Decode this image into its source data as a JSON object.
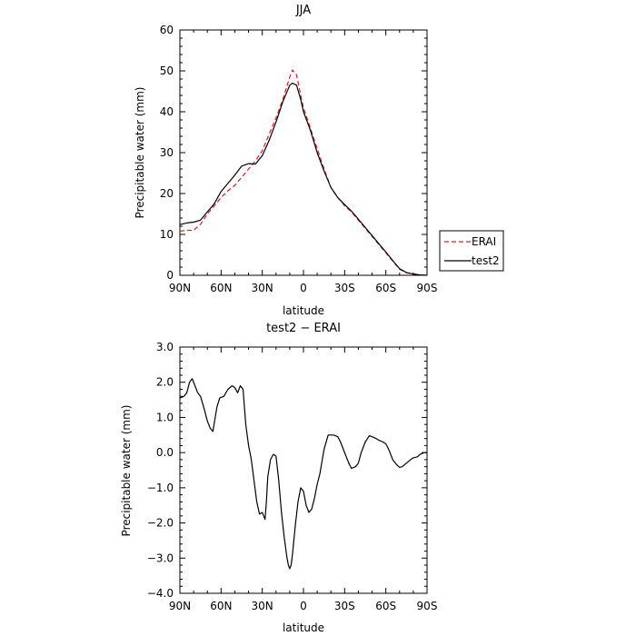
{
  "chart_data": [
    {
      "type": "line",
      "title": "JJA",
      "xlabel": "latitude",
      "ylabel": "Precipitable water (mm)",
      "xlim": [
        -90,
        90
      ],
      "ylim": [
        0,
        60
      ],
      "x_ticks": [
        -90,
        -60,
        -30,
        0,
        30,
        60,
        90
      ],
      "x_tick_labels": [
        "90N",
        "60N",
        "30N",
        "0",
        "30S",
        "60S",
        "90S"
      ],
      "y_ticks": [
        0,
        10,
        20,
        30,
        40,
        50,
        60
      ],
      "y_tick_labels": [
        "0",
        "10",
        "20",
        "30",
        "40",
        "50",
        "60"
      ],
      "legend_position": "right",
      "series": [
        {
          "name": "ERAI",
          "color": "#e41a1c",
          "dash": "dashed",
          "x": [
            -90,
            -85,
            -80,
            -75,
            -70,
            -65,
            -60,
            -55,
            -50,
            -45,
            -40,
            -35,
            -30,
            -25,
            -20,
            -15,
            -10,
            -8,
            -5,
            -2,
            0,
            5,
            10,
            15,
            20,
            25,
            30,
            35,
            40,
            45,
            50,
            55,
            60,
            65,
            70,
            75,
            80,
            85,
            90
          ],
          "y": [
            10.8,
            11.0,
            11.0,
            12.5,
            15.0,
            17.0,
            19.0,
            20.7,
            22.0,
            24.0,
            26.0,
            28.0,
            30.5,
            34.5,
            38.5,
            43.0,
            48.5,
            50.2,
            49.0,
            44.0,
            41.0,
            36.0,
            31.0,
            26.0,
            21.5,
            19.0,
            17.0,
            15.5,
            13.5,
            11.5,
            9.5,
            7.5,
            5.5,
            3.5,
            1.5,
            0.6,
            0.3,
            0.1,
            0.0
          ]
        },
        {
          "name": "test2",
          "color": "#000000",
          "dash": "solid",
          "x": [
            -90,
            -85,
            -80,
            -75,
            -70,
            -65,
            -60,
            -55,
            -50,
            -45,
            -40,
            -35,
            -30,
            -25,
            -20,
            -15,
            -10,
            -8,
            -5,
            -2,
            0,
            5,
            10,
            15,
            20,
            25,
            30,
            35,
            40,
            45,
            50,
            55,
            60,
            65,
            70,
            75,
            80,
            85,
            90
          ],
          "y": [
            12.4,
            12.8,
            13.0,
            13.5,
            15.5,
            17.5,
            20.5,
            22.5,
            24.5,
            26.7,
            27.3,
            27.2,
            29.3,
            33.0,
            37.5,
            42.5,
            46.5,
            47.0,
            46.5,
            43.0,
            40.0,
            35.5,
            30.0,
            25.5,
            21.5,
            19.0,
            17.3,
            15.7,
            13.7,
            11.7,
            9.7,
            7.7,
            5.7,
            3.6,
            1.6,
            0.7,
            0.3,
            0.1,
            0.0
          ]
        }
      ]
    },
    {
      "type": "line",
      "title": "test2 − ERAI",
      "xlabel": "latitude",
      "ylabel": "Precipitable water (mm)",
      "xlim": [
        -90,
        90
      ],
      "ylim": [
        -4,
        3
      ],
      "x_ticks": [
        -90,
        -60,
        -30,
        0,
        30,
        60,
        90
      ],
      "x_tick_labels": [
        "90N",
        "60N",
        "30N",
        "0",
        "30S",
        "60S",
        "90S"
      ],
      "y_ticks": [
        -4,
        -3,
        -2,
        -1,
        0,
        1,
        2,
        3
      ],
      "y_tick_labels": [
        "−4.0",
        "−3.0",
        "−2.0",
        "−1.0",
        "0.0",
        "1.0",
        "2.0",
        "3.0"
      ],
      "series": [
        {
          "color": "#000000",
          "dash": "solid",
          "x": [
            -90,
            -87,
            -85,
            -83,
            -81,
            -79,
            -77,
            -75,
            -72,
            -70,
            -68,
            -66,
            -63,
            -61,
            -58,
            -55,
            -52,
            -50,
            -48,
            -46,
            -44,
            -42,
            -40,
            -38,
            -36,
            -34,
            -32,
            -30,
            -28,
            -27,
            -26,
            -24,
            -22,
            -20,
            -18,
            -16,
            -14,
            -12,
            -11,
            -10,
            -9,
            -8,
            -6,
            -4,
            -2,
            0,
            2,
            4,
            6,
            8,
            10,
            12,
            15,
            18,
            20,
            22,
            25,
            27,
            30,
            33,
            35,
            38,
            40,
            42,
            45,
            48,
            50,
            53,
            55,
            58,
            60,
            62,
            65,
            68,
            70,
            72,
            75,
            78,
            80,
            83,
            85,
            88,
            90
          ],
          "y": [
            1.55,
            1.6,
            1.7,
            2.0,
            2.1,
            1.9,
            1.7,
            1.6,
            1.2,
            0.9,
            0.7,
            0.6,
            1.3,
            1.55,
            1.6,
            1.8,
            1.9,
            1.85,
            1.7,
            1.9,
            1.8,
            0.8,
            0.2,
            -0.2,
            -0.8,
            -1.4,
            -1.75,
            -1.7,
            -1.9,
            -1.4,
            -0.7,
            -0.2,
            -0.05,
            -0.1,
            -0.8,
            -1.7,
            -2.4,
            -3.0,
            -3.2,
            -3.3,
            -3.2,
            -2.9,
            -2.1,
            -1.4,
            -1.0,
            -1.1,
            -1.5,
            -1.7,
            -1.6,
            -1.3,
            -0.9,
            -0.6,
            0.1,
            0.5,
            0.5,
            0.5,
            0.45,
            0.3,
            0.0,
            -0.3,
            -0.45,
            -0.4,
            -0.3,
            0.0,
            0.3,
            0.48,
            0.45,
            0.4,
            0.35,
            0.3,
            0.25,
            0.1,
            -0.2,
            -0.35,
            -0.42,
            -0.4,
            -0.3,
            -0.2,
            -0.15,
            -0.12,
            -0.05,
            0.0,
            0.0
          ]
        }
      ]
    }
  ]
}
